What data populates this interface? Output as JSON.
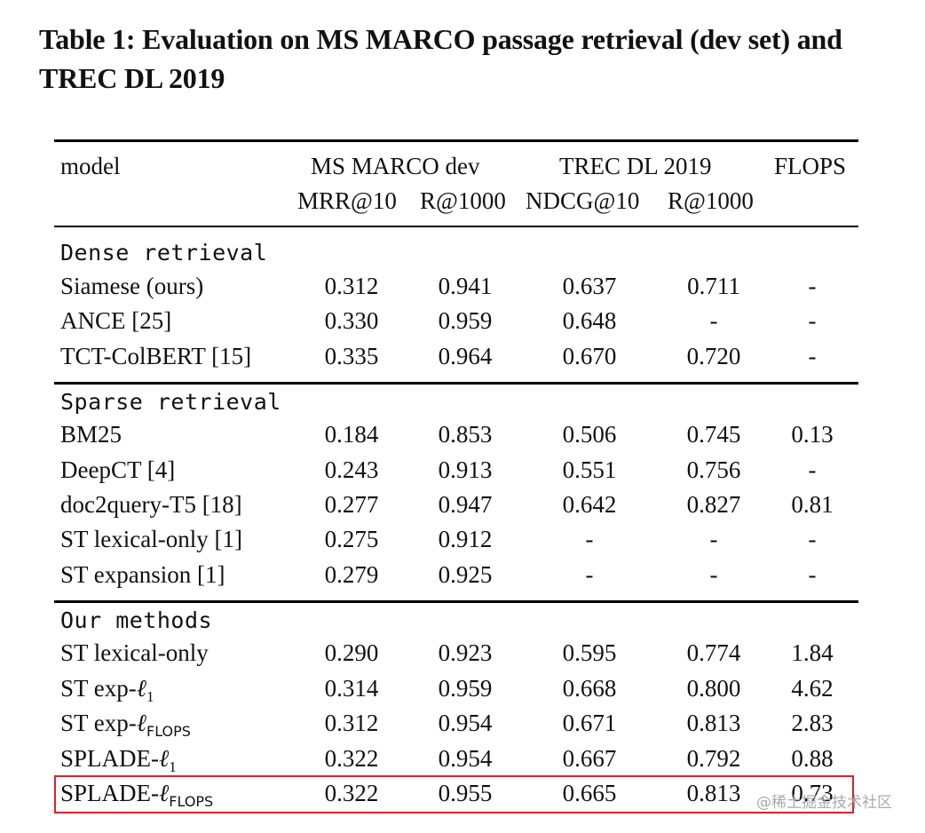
{
  "caption": "Table 1: Evaluation on MS MARCO passage retrieval (dev set) and TREC DL 2019",
  "header": {
    "model": "model",
    "ms_marco_dev": "MS MARCO dev",
    "trec_dl_2019": "TREC DL 2019",
    "flops": "FLOPS",
    "mrr10": "MRR@10",
    "r1000_a": "R@1000",
    "ndcg10": "NDCG@10",
    "r1000_b": "R@1000"
  },
  "sections": [
    {
      "title": "Dense retrieval",
      "rows": [
        {
          "model": "Siamese (ours)",
          "mrr": "0.312",
          "r1": "0.941",
          "ndcg": "0.637",
          "r2": "0.711",
          "flops": "-"
        },
        {
          "model": "ANCE [25]",
          "mrr": "0.330",
          "r1": "0.959",
          "ndcg": "0.648",
          "r2": "-",
          "flops": "-"
        },
        {
          "model": "TCT-ColBERT [15]",
          "mrr": "0.335",
          "r1": "0.964",
          "ndcg": "0.670",
          "r2": "0.720",
          "flops": "-"
        }
      ]
    },
    {
      "title": "Sparse retrieval",
      "rows": [
        {
          "model": "BM25",
          "mrr": "0.184",
          "r1": "0.853",
          "ndcg": "0.506",
          "r2": "0.745",
          "flops": "0.13"
        },
        {
          "model": "DeepCT [4]",
          "mrr": "0.243",
          "r1": "0.913",
          "ndcg": "0.551",
          "r2": "0.756",
          "flops": "-"
        },
        {
          "model": "doc2query-T5 [18]",
          "mrr": "0.277",
          "r1": "0.947",
          "ndcg": "0.642",
          "r2": "0.827",
          "flops": "0.81"
        },
        {
          "model": "ST lexical-only [1]",
          "mrr": "0.275",
          "r1": "0.912",
          "ndcg": "-",
          "r2": "-",
          "flops": "-"
        },
        {
          "model": "ST expansion [1]",
          "mrr": "0.279",
          "r1": "0.925",
          "ndcg": "-",
          "r2": "-",
          "flops": "-"
        }
      ]
    },
    {
      "title": "Our methods",
      "rows": [
        {
          "model": "ST lexical-only",
          "mrr": "0.290",
          "r1": "0.923",
          "ndcg": "0.595",
          "r2": "0.774",
          "flops": "1.84"
        },
        {
          "model": "ST exp-",
          "model_sub": "1",
          "mrr": "0.314",
          "r1": "0.959",
          "ndcg": "0.668",
          "r2": "0.800",
          "flops": "4.62"
        },
        {
          "model": "ST exp-",
          "model_sub": "FLOPS",
          "mrr": "0.312",
          "r1": "0.954",
          "ndcg": "0.671",
          "r2": "0.813",
          "flops": "2.83"
        },
        {
          "model": "SPLADE-",
          "model_sub": "1",
          "mrr": "0.322",
          "r1": "0.954",
          "ndcg": "0.667",
          "r2": "0.792",
          "flops": "0.88"
        },
        {
          "model": "SPLADE-",
          "model_sub": "FLOPS",
          "mrr": "0.322",
          "r1": "0.955",
          "ndcg": "0.665",
          "r2": "0.813",
          "flops": "0.73",
          "highlighted": true
        }
      ]
    }
  ],
  "ell_symbol": "ℓ",
  "watermark": "@稀土掘金技术社区",
  "colors": {
    "highlight_border": "#d9232d",
    "text": "#111111",
    "watermark": "#aaaaaa"
  }
}
